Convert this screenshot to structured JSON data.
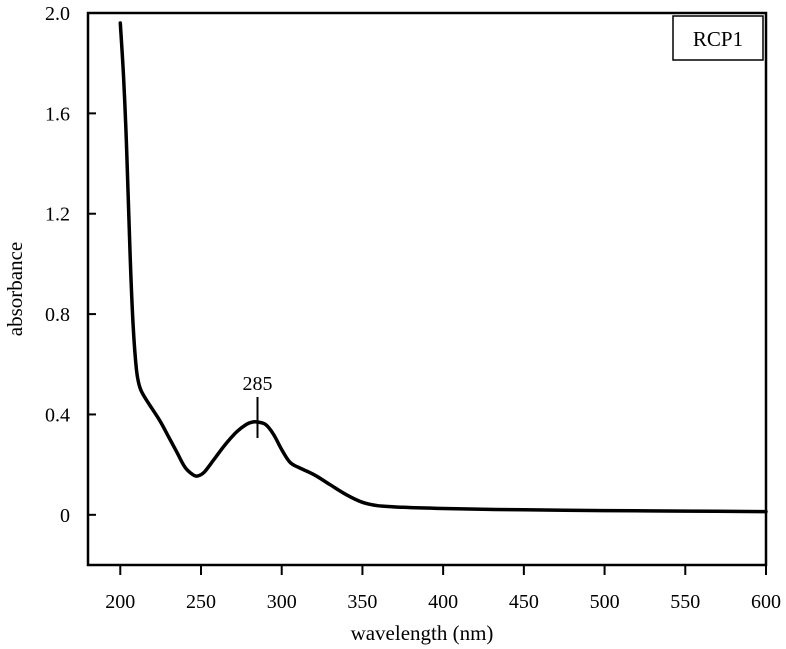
{
  "chart_data": {
    "type": "line",
    "title": "",
    "xlabel": "wavelength (nm)",
    "ylabel": "absorbance",
    "xlim": [
      180,
      600
    ],
    "ylim": [
      -0.2,
      2.0
    ],
    "x_ticks": [
      200,
      250,
      300,
      350,
      400,
      450,
      500,
      550,
      600
    ],
    "x_tick_labels": [
      "200",
      "250",
      "300",
      "350",
      "400",
      "450",
      "500",
      "550",
      "600"
    ],
    "y_ticks": [
      0,
      0.4,
      0.8,
      1.2,
      1.6,
      2.0
    ],
    "y_tick_labels": [
      "0",
      "0.4",
      "0.8",
      "1.2",
      "1.6",
      "2.0"
    ],
    "grid": false,
    "legend": {
      "entries": [
        "RCP1"
      ],
      "placement": "top-right"
    },
    "annotations": [
      {
        "text": "285",
        "x": 285,
        "y": 0.37
      }
    ],
    "series": [
      {
        "name": "RCP1",
        "color": "#000000",
        "points": [
          [
            200,
            1.96
          ],
          [
            202,
            1.75
          ],
          [
            204,
            1.45
          ],
          [
            206,
            1.05
          ],
          [
            208,
            0.75
          ],
          [
            210,
            0.58
          ],
          [
            212,
            0.51
          ],
          [
            215,
            0.47
          ],
          [
            220,
            0.42
          ],
          [
            225,
            0.37
          ],
          [
            230,
            0.31
          ],
          [
            235,
            0.25
          ],
          [
            240,
            0.19
          ],
          [
            245,
            0.16
          ],
          [
            248,
            0.155
          ],
          [
            252,
            0.17
          ],
          [
            258,
            0.22
          ],
          [
            265,
            0.28
          ],
          [
            272,
            0.33
          ],
          [
            278,
            0.36
          ],
          [
            282,
            0.37
          ],
          [
            285,
            0.37
          ],
          [
            290,
            0.36
          ],
          [
            295,
            0.32
          ],
          [
            300,
            0.26
          ],
          [
            305,
            0.21
          ],
          [
            310,
            0.19
          ],
          [
            320,
            0.16
          ],
          [
            330,
            0.12
          ],
          [
            340,
            0.08
          ],
          [
            350,
            0.05
          ],
          [
            360,
            0.036
          ],
          [
            375,
            0.03
          ],
          [
            400,
            0.025
          ],
          [
            450,
            0.02
          ],
          [
            500,
            0.017
          ],
          [
            550,
            0.015
          ],
          [
            600,
            0.013
          ]
        ]
      }
    ]
  }
}
